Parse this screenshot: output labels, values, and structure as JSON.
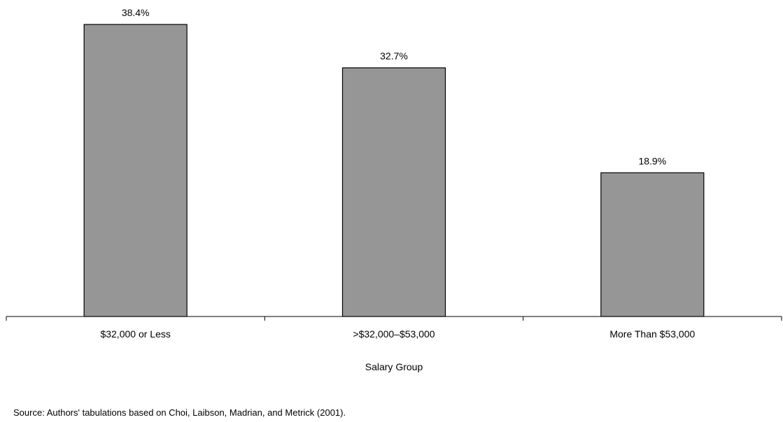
{
  "chart_data": {
    "type": "bar",
    "categories": [
      "$32,000 or Less",
      ">$32,000–$53,000",
      "More Than $53,000"
    ],
    "values": [
      38.4,
      32.7,
      18.9
    ],
    "data_labels": [
      "38.4%",
      "32.7%",
      "18.9%"
    ],
    "title": "",
    "xlabel": "Salary Group",
    "ylabel": "",
    "ylim": [
      0,
      40
    ],
    "grid": false,
    "bar_color": "#969696",
    "bar_edge_color": "#000000"
  },
  "source_note": "Source: Authors' tabulations based on Choi, Laibson, Madrian, and Metrick (2001)."
}
